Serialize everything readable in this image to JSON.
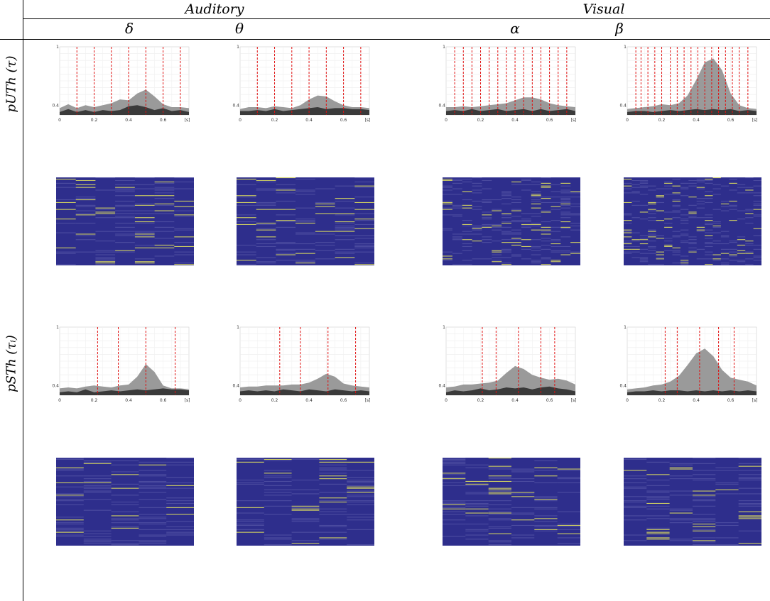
{
  "header": {
    "groups": [
      "Auditory",
      "Visual"
    ],
    "bands": [
      "δ",
      "θ",
      "α",
      "β"
    ]
  },
  "rows": {
    "row1": {
      "label": "pUTh (τ)"
    },
    "row2": {
      "label": "pSTh (τᵢ)"
    }
  },
  "colors": {
    "outer_area": "#9a9a9a",
    "inner_area": "#3a3a3a",
    "marker_line": "#e01010",
    "raster_bg": "#2e2e8c",
    "raster_line": "#d8d860"
  },
  "chart_data": [
    {
      "type": "area",
      "row": "pUTh (τ)",
      "band": "δ",
      "xlim": [
        0,
        0.75
      ],
      "ylim": [
        0.3,
        1
      ],
      "x_ticks": [
        "0",
        "0.2",
        "0.4",
        "0.6",
        "[s]"
      ],
      "y_ticks": [
        "0.4",
        "1"
      ],
      "markers": [
        0.1,
        0.2,
        0.3,
        0.4,
        0.5,
        0.6,
        0.7
      ],
      "series": [
        {
          "x": [
            0,
            0.05,
            0.1,
            0.15,
            0.2,
            0.25,
            0.3,
            0.35,
            0.4,
            0.45,
            0.5,
            0.55,
            0.6,
            0.65,
            0.7,
            0.75
          ],
          "values": [
            0.37,
            0.41,
            0.37,
            0.4,
            0.38,
            0.4,
            0.42,
            0.46,
            0.45,
            0.52,
            0.56,
            0.49,
            0.41,
            0.38,
            0.38,
            0.37
          ]
        },
        {
          "x": [
            0,
            0.05,
            0.1,
            0.15,
            0.2,
            0.25,
            0.3,
            0.35,
            0.4,
            0.45,
            0.5,
            0.55,
            0.6,
            0.65,
            0.7,
            0.75
          ],
          "values": [
            0.33,
            0.36,
            0.33,
            0.35,
            0.33,
            0.35,
            0.34,
            0.35,
            0.39,
            0.4,
            0.38,
            0.35,
            0.37,
            0.34,
            0.35,
            0.33
          ]
        }
      ]
    },
    {
      "type": "area",
      "row": "pUTh (τ)",
      "band": "θ",
      "xlim": [
        0,
        0.75
      ],
      "ylim": [
        0.3,
        1
      ],
      "x_ticks": [
        "0",
        "0.2",
        "0.4",
        "0.6",
        "[s]"
      ],
      "y_ticks": [
        "0.4",
        "1"
      ],
      "markers": [
        0.1,
        0.2,
        0.3,
        0.4,
        0.5,
        0.6,
        0.7
      ],
      "series": [
        {
          "x": [
            0,
            0.05,
            0.1,
            0.15,
            0.2,
            0.25,
            0.3,
            0.35,
            0.4,
            0.45,
            0.5,
            0.55,
            0.6,
            0.65,
            0.7,
            0.75
          ],
          "values": [
            0.36,
            0.38,
            0.38,
            0.37,
            0.39,
            0.38,
            0.37,
            0.4,
            0.46,
            0.5,
            0.49,
            0.44,
            0.4,
            0.38,
            0.38,
            0.37
          ]
        },
        {
          "x": [
            0,
            0.05,
            0.1,
            0.15,
            0.2,
            0.25,
            0.3,
            0.35,
            0.4,
            0.45,
            0.5,
            0.55,
            0.6,
            0.65,
            0.7,
            0.75
          ],
          "values": [
            0.34,
            0.34,
            0.35,
            0.34,
            0.36,
            0.34,
            0.35,
            0.36,
            0.37,
            0.38,
            0.36,
            0.37,
            0.37,
            0.36,
            0.36,
            0.35
          ]
        }
      ]
    },
    {
      "type": "area",
      "row": "pUTh (τ)",
      "band": "α",
      "xlim": [
        0,
        0.75
      ],
      "ylim": [
        0.3,
        1
      ],
      "x_ticks": [
        "0",
        "0.2",
        "0.4",
        "0.6",
        "[s]"
      ],
      "y_ticks": [
        "0.4",
        "1"
      ],
      "markers": [
        0.05,
        0.1,
        0.15,
        0.2,
        0.25,
        0.3,
        0.35,
        0.4,
        0.45,
        0.5,
        0.55,
        0.6,
        0.65,
        0.7
      ],
      "series": [
        {
          "x": [
            0,
            0.05,
            0.1,
            0.15,
            0.2,
            0.25,
            0.3,
            0.35,
            0.4,
            0.45,
            0.5,
            0.55,
            0.6,
            0.65,
            0.7,
            0.75
          ],
          "values": [
            0.38,
            0.38,
            0.39,
            0.38,
            0.39,
            0.4,
            0.41,
            0.42,
            0.45,
            0.48,
            0.48,
            0.46,
            0.42,
            0.4,
            0.39,
            0.38
          ]
        },
        {
          "x": [
            0,
            0.05,
            0.1,
            0.15,
            0.2,
            0.25,
            0.3,
            0.35,
            0.4,
            0.45,
            0.5,
            0.55,
            0.6,
            0.65,
            0.7,
            0.75
          ],
          "values": [
            0.34,
            0.35,
            0.34,
            0.36,
            0.34,
            0.35,
            0.36,
            0.34,
            0.35,
            0.36,
            0.34,
            0.36,
            0.34,
            0.35,
            0.36,
            0.34
          ]
        }
      ]
    },
    {
      "type": "area",
      "row": "pUTh (τ)",
      "band": "β",
      "xlim": [
        0,
        0.75
      ],
      "ylim": [
        0.3,
        1
      ],
      "x_ticks": [
        "0",
        "0.2",
        "0.4",
        "0.6",
        "[s]"
      ],
      "y_ticks": [
        "0.4",
        "1"
      ],
      "markers": [
        0.05,
        0.08,
        0.12,
        0.16,
        0.2,
        0.25,
        0.29,
        0.33,
        0.37,
        0.41,
        0.45,
        0.49,
        0.53,
        0.57,
        0.61,
        0.65,
        0.7
      ],
      "series": [
        {
          "x": [
            0,
            0.05,
            0.1,
            0.15,
            0.2,
            0.25,
            0.3,
            0.35,
            0.4,
            0.45,
            0.5,
            0.55,
            0.6,
            0.65,
            0.7,
            0.75
          ],
          "values": [
            0.36,
            0.37,
            0.38,
            0.39,
            0.41,
            0.4,
            0.42,
            0.5,
            0.66,
            0.84,
            0.88,
            0.76,
            0.52,
            0.4,
            0.37,
            0.36
          ]
        },
        {
          "x": [
            0,
            0.05,
            0.1,
            0.15,
            0.2,
            0.25,
            0.3,
            0.35,
            0.4,
            0.45,
            0.5,
            0.55,
            0.6,
            0.65,
            0.7,
            0.75
          ],
          "values": [
            0.33,
            0.34,
            0.34,
            0.33,
            0.34,
            0.35,
            0.34,
            0.35,
            0.36,
            0.35,
            0.36,
            0.35,
            0.36,
            0.34,
            0.35,
            0.34
          ]
        }
      ]
    },
    {
      "type": "area",
      "row": "pSTh (τᵢ)",
      "band": "δ",
      "xlim": [
        0,
        0.75
      ],
      "ylim": [
        0.3,
        1
      ],
      "x_ticks": [
        "0",
        "0.2",
        "0.4",
        "0.6",
        "[s]"
      ],
      "y_ticks": [
        "0.4",
        "1"
      ],
      "markers": [
        0.22,
        0.34,
        0.5,
        0.67
      ],
      "series": [
        {
          "x": [
            0,
            0.05,
            0.1,
            0.15,
            0.2,
            0.25,
            0.3,
            0.35,
            0.4,
            0.45,
            0.5,
            0.55,
            0.6,
            0.65,
            0.7,
            0.75
          ],
          "values": [
            0.37,
            0.38,
            0.37,
            0.39,
            0.4,
            0.39,
            0.38,
            0.4,
            0.41,
            0.49,
            0.62,
            0.54,
            0.4,
            0.37,
            0.37,
            0.36
          ]
        },
        {
          "x": [
            0,
            0.05,
            0.1,
            0.15,
            0.2,
            0.25,
            0.3,
            0.35,
            0.4,
            0.45,
            0.5,
            0.55,
            0.6,
            0.65,
            0.7,
            0.75
          ],
          "values": [
            0.33,
            0.34,
            0.33,
            0.36,
            0.33,
            0.34,
            0.35,
            0.34,
            0.35,
            0.36,
            0.35,
            0.36,
            0.37,
            0.36,
            0.36,
            0.35
          ]
        }
      ]
    },
    {
      "type": "area",
      "row": "pSTh (τᵢ)",
      "band": "θ",
      "xlim": [
        0,
        0.75
      ],
      "ylim": [
        0.3,
        1
      ],
      "x_ticks": [
        "0",
        "0.2",
        "0.4",
        "0.6",
        "[s]"
      ],
      "y_ticks": [
        "0.4",
        "1"
      ],
      "markers": [
        0.23,
        0.35,
        0.51,
        0.67
      ],
      "series": [
        {
          "x": [
            0,
            0.05,
            0.1,
            0.15,
            0.2,
            0.25,
            0.3,
            0.35,
            0.4,
            0.45,
            0.5,
            0.55,
            0.6,
            0.65,
            0.7,
            0.75
          ],
          "values": [
            0.38,
            0.39,
            0.39,
            0.4,
            0.4,
            0.4,
            0.41,
            0.41,
            0.43,
            0.47,
            0.52,
            0.49,
            0.42,
            0.4,
            0.39,
            0.38
          ]
        },
        {
          "x": [
            0,
            0.05,
            0.1,
            0.15,
            0.2,
            0.25,
            0.3,
            0.35,
            0.4,
            0.45,
            0.5,
            0.55,
            0.6,
            0.65,
            0.7,
            0.75
          ],
          "values": [
            0.34,
            0.35,
            0.34,
            0.35,
            0.34,
            0.36,
            0.35,
            0.34,
            0.36,
            0.35,
            0.34,
            0.36,
            0.35,
            0.34,
            0.35,
            0.34
          ]
        }
      ]
    },
    {
      "type": "area",
      "row": "pSTh (τᵢ)",
      "band": "α",
      "xlim": [
        0,
        0.75
      ],
      "ylim": [
        0.3,
        1
      ],
      "x_ticks": [
        "0",
        "0.2",
        "0.4",
        "0.6",
        "[s]"
      ],
      "y_ticks": [
        "0.4",
        "1"
      ],
      "markers": [
        0.21,
        0.29,
        0.42,
        0.55,
        0.63
      ],
      "series": [
        {
          "x": [
            0,
            0.05,
            0.1,
            0.15,
            0.2,
            0.25,
            0.3,
            0.35,
            0.4,
            0.45,
            0.5,
            0.55,
            0.6,
            0.65,
            0.7,
            0.75
          ],
          "values": [
            0.38,
            0.39,
            0.41,
            0.41,
            0.42,
            0.43,
            0.45,
            0.53,
            0.6,
            0.57,
            0.51,
            0.48,
            0.46,
            0.47,
            0.45,
            0.41
          ]
        },
        {
          "x": [
            0,
            0.05,
            0.1,
            0.15,
            0.2,
            0.25,
            0.3,
            0.35,
            0.4,
            0.45,
            0.5,
            0.55,
            0.6,
            0.65,
            0.7,
            0.75
          ],
          "values": [
            0.33,
            0.35,
            0.34,
            0.35,
            0.37,
            0.35,
            0.36,
            0.38,
            0.37,
            0.38,
            0.36,
            0.38,
            0.39,
            0.37,
            0.36,
            0.34
          ]
        }
      ]
    },
    {
      "type": "area",
      "row": "pSTh (τᵢ)",
      "band": "β",
      "xlim": [
        0,
        0.75
      ],
      "ylim": [
        0.3,
        1
      ],
      "x_ticks": [
        "0",
        "0.2",
        "0.4",
        "0.6",
        "[s]"
      ],
      "y_ticks": [
        "0.4",
        "1"
      ],
      "markers": [
        0.22,
        0.29,
        0.42,
        0.53,
        0.62
      ],
      "series": [
        {
          "x": [
            0,
            0.05,
            0.1,
            0.15,
            0.2,
            0.25,
            0.3,
            0.35,
            0.4,
            0.45,
            0.5,
            0.55,
            0.6,
            0.65,
            0.7,
            0.75
          ],
          "values": [
            0.36,
            0.37,
            0.38,
            0.4,
            0.41,
            0.44,
            0.5,
            0.61,
            0.73,
            0.78,
            0.7,
            0.56,
            0.48,
            0.46,
            0.44,
            0.4
          ]
        },
        {
          "x": [
            0,
            0.05,
            0.1,
            0.15,
            0.2,
            0.25,
            0.3,
            0.35,
            0.4,
            0.45,
            0.5,
            0.55,
            0.6,
            0.65,
            0.7,
            0.75
          ],
          "values": [
            0.33,
            0.34,
            0.34,
            0.35,
            0.34,
            0.35,
            0.35,
            0.34,
            0.35,
            0.34,
            0.35,
            0.34,
            0.35,
            0.34,
            0.35,
            0.34
          ]
        }
      ]
    },
    {
      "type": "heatmap",
      "row": "pUTh (τ)",
      "band": "δ",
      "blocks": 7,
      "rows": 64
    },
    {
      "type": "heatmap",
      "row": "pUTh (τ)",
      "band": "θ",
      "blocks": 7,
      "rows": 64
    },
    {
      "type": "heatmap",
      "row": "pUTh (τ)",
      "band": "α",
      "blocks": 14,
      "rows": 64
    },
    {
      "type": "heatmap",
      "row": "pUTh (τ)",
      "band": "β",
      "blocks": 17,
      "rows": 64
    },
    {
      "type": "heatmap",
      "row": "pSTh (τᵢ)",
      "band": "δ",
      "blocks": 5,
      "rows": 64
    },
    {
      "type": "heatmap",
      "row": "pSTh (τᵢ)",
      "band": "θ",
      "blocks": 5,
      "rows": 64
    },
    {
      "type": "heatmap",
      "row": "pSTh (τᵢ)",
      "band": "α",
      "blocks": 6,
      "rows": 64
    },
    {
      "type": "heatmap",
      "row": "pSTh (τᵢ)",
      "band": "β",
      "blocks": 6,
      "rows": 64
    }
  ]
}
